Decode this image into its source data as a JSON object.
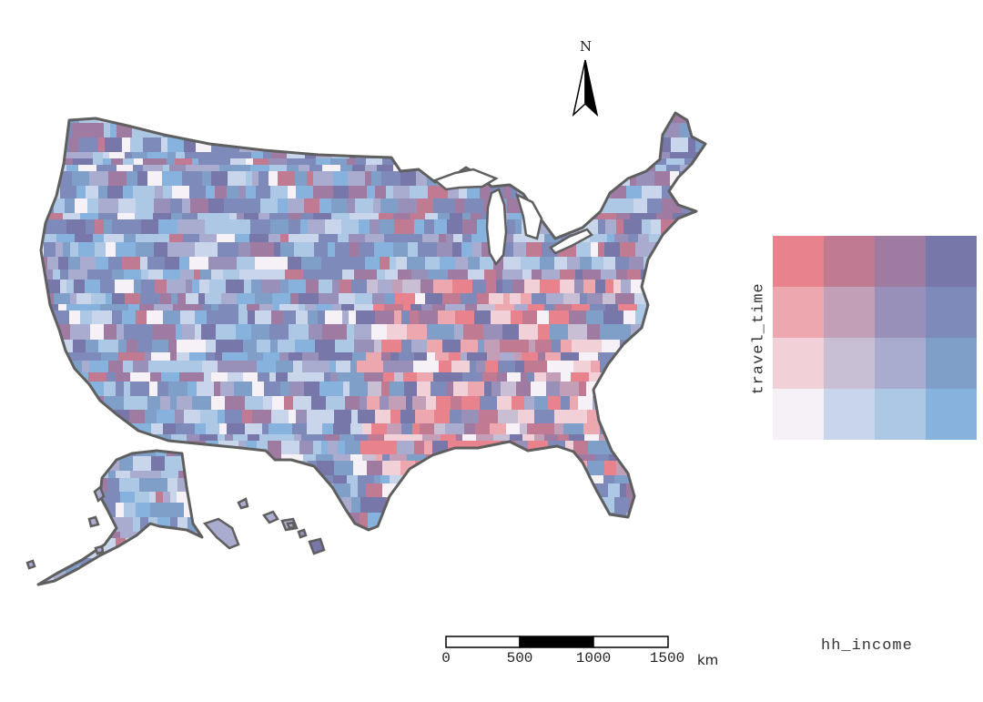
{
  "north_arrow": {
    "label": "N"
  },
  "legend": {
    "x_label": "hh_income",
    "y_label": "travel_time",
    "colors": [
      [
        "#e8838e",
        "#c07b92",
        "#9f7aa1",
        "#7877aa"
      ],
      [
        "#eda7af",
        "#c29fb6",
        "#9890b8",
        "#7d8aba"
      ],
      [
        "#f1d0d7",
        "#c8bfd5",
        "#a9acce",
        "#7f9fc9"
      ],
      [
        "#f6f1f6",
        "#c9d5eb",
        "#adc8e4",
        "#86b2dd"
      ]
    ]
  },
  "scale_bar": {
    "ticks": [
      "0",
      "500",
      "1000",
      "1500"
    ],
    "unit": "km"
  },
  "map_palette": [
    "#e8838e",
    "#c07b92",
    "#9f7aa1",
    "#7877aa",
    "#eda7af",
    "#c29fb6",
    "#9890b8",
    "#7d8aba",
    "#f1d0d7",
    "#c8bfd5",
    "#a9acce",
    "#7f9fc9",
    "#f6f1f6",
    "#c9d5eb",
    "#adc8e4",
    "#86b2dd"
  ],
  "outline_color": "#5f5f5f"
}
